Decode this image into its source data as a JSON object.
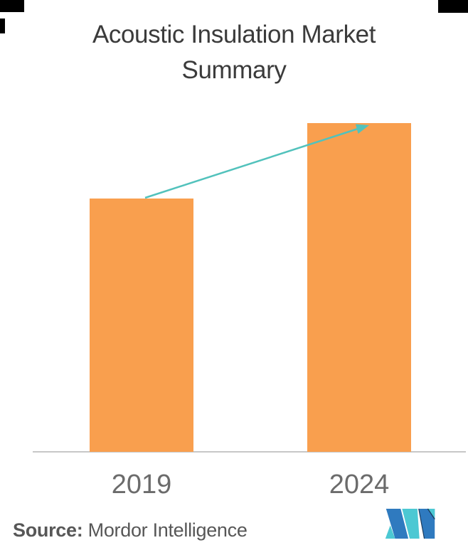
{
  "title": {
    "lines": [
      "Acoustic Insulation Market",
      "Summary"
    ],
    "full": "Acoustic Insulation Market Summary"
  },
  "chart_data": {
    "type": "bar",
    "title": "Acoustic Insulation Market Summary",
    "categories": [
      "2019",
      "2024"
    ],
    "values": [
      77,
      100
    ],
    "value_scale": "relative index (no numeric axis shown; 2024 bar = 100)",
    "xlabel": "",
    "ylabel": "",
    "ylim": [
      0,
      100
    ],
    "grid": false,
    "legend": false,
    "bar_color": "#F99F4E",
    "annotations": [
      {
        "type": "growth-arrow",
        "from": "2019",
        "to": "2024",
        "color": "#52C2BC"
      }
    ]
  },
  "axis": {
    "line_color": "#C7C7C7",
    "label_color": "#6B6B6B"
  },
  "source": {
    "label": "Source:",
    "name": " Mordor Intelligence"
  },
  "logo": {
    "name": "Mordor Intelligence logo",
    "teal": "#4CC8D3",
    "blue": "#2F7ABF",
    "navy": "#1B3A5C"
  },
  "colors": {
    "background": "#FFFFFF",
    "title": "#3B3B3B",
    "source_text": "#575757"
  }
}
